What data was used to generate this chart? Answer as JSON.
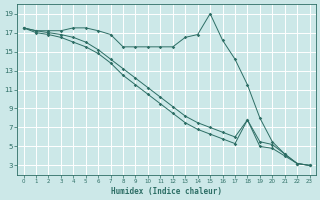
{
  "xlabel": "Humidex (Indice chaleur)",
  "bg_color": "#cce8e8",
  "grid_color": "#ffffff",
  "line_color": "#2d6e65",
  "xlim": [
    -0.5,
    23.5
  ],
  "ylim": [
    2.0,
    20.0
  ],
  "yticks": [
    3,
    5,
    7,
    9,
    11,
    13,
    15,
    17,
    19
  ],
  "xticks": [
    0,
    1,
    2,
    3,
    4,
    5,
    6,
    7,
    8,
    9,
    10,
    11,
    12,
    13,
    14,
    15,
    16,
    17,
    18,
    19,
    20,
    21,
    22,
    23
  ],
  "line1_x": [
    0,
    1,
    2,
    3,
    4,
    5,
    6,
    7,
    8,
    9,
    10,
    11,
    12,
    13,
    14,
    15,
    16,
    17,
    18,
    19,
    20,
    21,
    22,
    23
  ],
  "line1_y": [
    17.5,
    17.2,
    17.2,
    17.2,
    17.5,
    17.5,
    17.2,
    16.8,
    15.5,
    15.5,
    15.5,
    15.5,
    15.5,
    16.5,
    16.8,
    19.0,
    16.2,
    14.2,
    11.5,
    8.0,
    5.5,
    4.2,
    3.2,
    3.0
  ],
  "line2_x": [
    0,
    1,
    2,
    3,
    4,
    5,
    6,
    7,
    8,
    9,
    10,
    11,
    12,
    13,
    14,
    15,
    16,
    17,
    18,
    19,
    20,
    21,
    22,
    23
  ],
  "line2_y": [
    17.5,
    17.2,
    17.0,
    16.8,
    16.5,
    16.0,
    15.2,
    14.2,
    13.2,
    12.2,
    11.2,
    10.2,
    9.2,
    8.2,
    7.5,
    7.0,
    6.5,
    6.0,
    7.8,
    5.5,
    5.2,
    4.2,
    3.2,
    3.0
  ],
  "line3_x": [
    0,
    1,
    2,
    3,
    4,
    5,
    6,
    7,
    8,
    9,
    10,
    11,
    12,
    13,
    14,
    15,
    16,
    17,
    18,
    19,
    20,
    21,
    22,
    23
  ],
  "line3_y": [
    17.5,
    17.0,
    16.8,
    16.5,
    16.0,
    15.5,
    14.8,
    13.8,
    12.5,
    11.5,
    10.5,
    9.5,
    8.5,
    7.5,
    6.8,
    6.3,
    5.8,
    5.3,
    7.8,
    5.0,
    4.8,
    4.0,
    3.2,
    3.0
  ]
}
